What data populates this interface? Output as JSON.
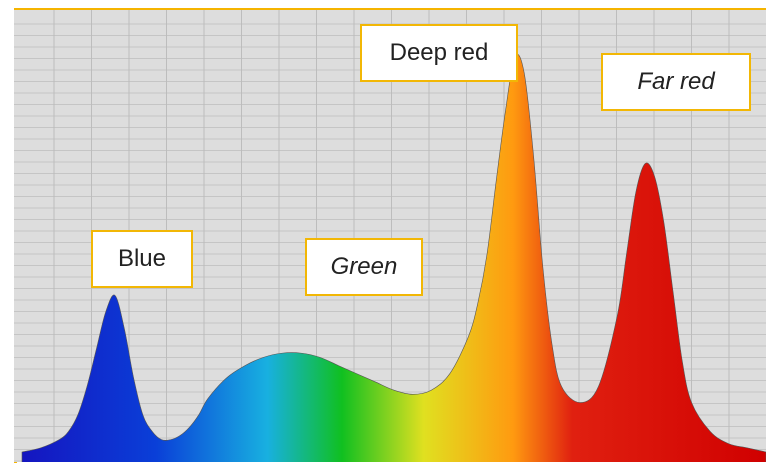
{
  "chart_data": {
    "type": "area",
    "title": "",
    "xlabel": "",
    "ylabel": "",
    "grid": true,
    "legend": "none",
    "xlim": [
      380,
      780
    ],
    "ylim": [
      0,
      1
    ],
    "x": [
      380,
      390,
      400,
      405,
      410,
      415,
      420,
      425,
      430,
      435,
      440,
      445,
      450,
      455,
      460,
      465,
      470,
      475,
      480,
      490,
      500,
      510,
      520,
      530,
      540,
      550,
      560,
      570,
      580,
      590,
      600,
      610,
      620,
      625,
      630,
      635,
      640,
      645,
      650,
      655,
      660,
      665,
      670,
      680,
      690,
      700,
      705,
      710,
      715,
      720,
      725,
      730,
      735,
      740,
      750,
      760,
      770,
      780
    ],
    "values": [
      0.0,
      0.01,
      0.03,
      0.05,
      0.09,
      0.16,
      0.25,
      0.34,
      0.38,
      0.3,
      0.18,
      0.09,
      0.05,
      0.03,
      0.03,
      0.04,
      0.06,
      0.09,
      0.13,
      0.18,
      0.21,
      0.23,
      0.24,
      0.24,
      0.23,
      0.21,
      0.19,
      0.17,
      0.15,
      0.14,
      0.15,
      0.19,
      0.28,
      0.36,
      0.48,
      0.66,
      0.83,
      0.96,
      0.92,
      0.72,
      0.45,
      0.26,
      0.16,
      0.12,
      0.16,
      0.33,
      0.48,
      0.63,
      0.7,
      0.67,
      0.56,
      0.39,
      0.22,
      0.12,
      0.05,
      0.02,
      0.01,
      0.0
    ],
    "annotations": [
      {
        "text": "Blue",
        "italic": false
      },
      {
        "text": "Green",
        "italic": true
      },
      {
        "text": "Deep red",
        "italic": false
      },
      {
        "text": "Far red",
        "italic": true
      }
    ],
    "colors": {
      "background": "#dddddd",
      "grid": "#bdbdbd",
      "frame": "#f5b400",
      "label_border": "#f2b705",
      "spectrum": [
        "#1515c0",
        "#0a3fd8",
        "#18b0e0",
        "#10c020",
        "#e0e020",
        "#ff9a10",
        "#e02010",
        "#d00000"
      ]
    }
  }
}
